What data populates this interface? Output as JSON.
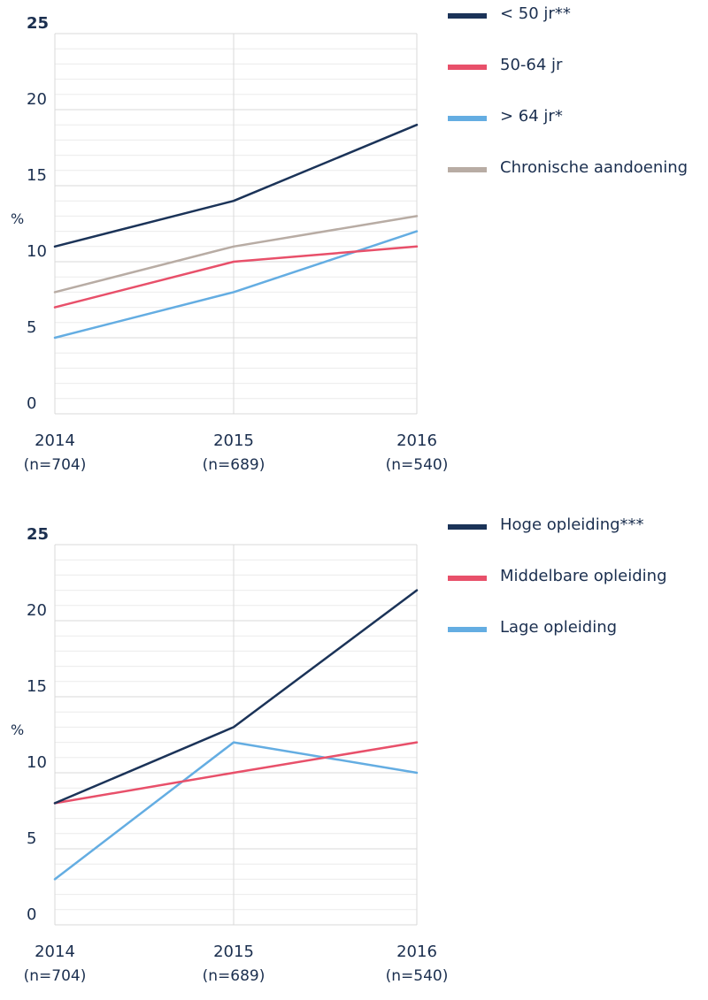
{
  "colors": {
    "navy": "#1b3358",
    "red": "#e8506a",
    "blue": "#64ade2",
    "taupe": "#b8aca4",
    "grid": "#d9d9d9",
    "grid_minor": "#ececec"
  },
  "chart_data": [
    {
      "type": "line",
      "x": [
        "2014",
        "2015",
        "2016"
      ],
      "x_tick_labels": [
        {
          "year": "2014",
          "n": "(n=704)"
        },
        {
          "year": "2015",
          "n": "(n=689)"
        },
        {
          "year": "2016",
          "n": "(n=540)"
        }
      ],
      "ylabel": "%",
      "ylim": [
        0,
        25
      ],
      "y_ticks": [
        "0",
        "5",
        "10",
        "15",
        "20",
        "25"
      ],
      "grid": true,
      "legend_position": "right",
      "series": [
        {
          "name": "< 50 jr**",
          "color": "#1b3358",
          "values": [
            11,
            14,
            19
          ]
        },
        {
          "name": "50-64 jr",
          "color": "#e8506a",
          "values": [
            7,
            10,
            11
          ]
        },
        {
          "name": "> 64 jr*",
          "color": "#64ade2",
          "values": [
            5,
            8,
            12
          ]
        },
        {
          "name": "Chronische aandoening",
          "color": "#b8aca4",
          "values": [
            8,
            11,
            13
          ]
        }
      ]
    },
    {
      "type": "line",
      "x": [
        "2014",
        "2015",
        "2016"
      ],
      "x_tick_labels": [
        {
          "year": "2014",
          "n": "(n=704)"
        },
        {
          "year": "2015",
          "n": "(n=689)"
        },
        {
          "year": "2016",
          "n": "(n=540)"
        }
      ],
      "ylabel": "%",
      "ylim": [
        0,
        25
      ],
      "y_ticks": [
        "0",
        "5",
        "10",
        "15",
        "20",
        "25"
      ],
      "grid": true,
      "legend_position": "right",
      "series": [
        {
          "name": "Hoge opleiding***",
          "color": "#1b3358",
          "values": [
            8,
            13,
            22
          ]
        },
        {
          "name": "Middelbare opleiding",
          "color": "#e8506a",
          "values": [
            8,
            10,
            12
          ]
        },
        {
          "name": "Lage opleiding",
          "color": "#64ade2",
          "values": [
            3,
            12,
            10
          ]
        }
      ]
    }
  ]
}
